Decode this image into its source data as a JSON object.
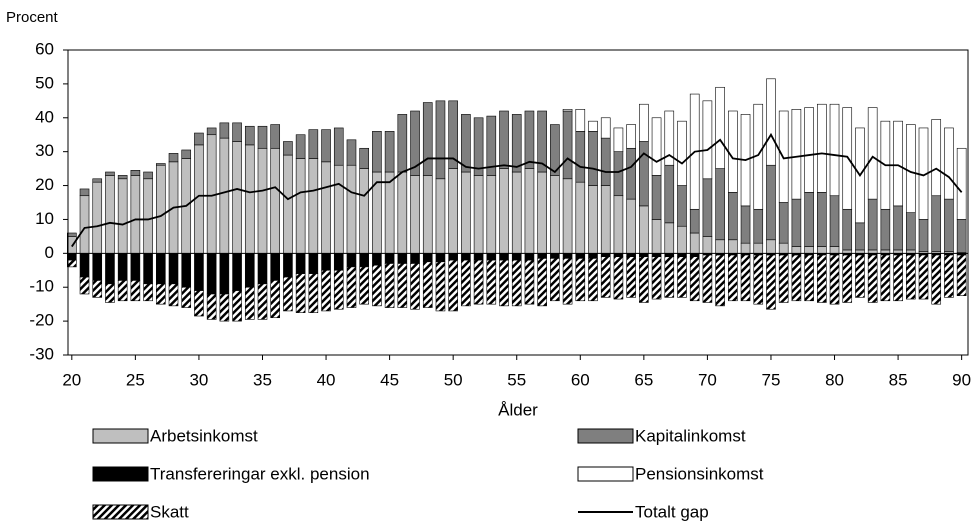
{
  "chart_data": {
    "type": "bar",
    "y_label": "Procent",
    "x_label": "Ålder",
    "x": [
      20,
      21,
      22,
      23,
      24,
      25,
      26,
      27,
      28,
      29,
      30,
      31,
      32,
      33,
      34,
      35,
      36,
      37,
      38,
      39,
      40,
      41,
      42,
      43,
      44,
      45,
      46,
      47,
      48,
      49,
      50,
      51,
      52,
      53,
      54,
      55,
      56,
      57,
      58,
      59,
      60,
      61,
      62,
      63,
      64,
      65,
      66,
      67,
      68,
      69,
      70,
      71,
      72,
      73,
      74,
      75,
      76,
      77,
      78,
      79,
      80,
      81,
      82,
      83,
      84,
      85,
      86,
      87,
      88,
      89,
      90
    ],
    "series": [
      {
        "name": "Arbetsinkomst",
        "color": "#bfbfbf",
        "values": [
          5,
          17,
          21,
          23,
          22,
          23,
          22,
          26,
          27,
          28,
          32,
          35,
          34,
          33,
          32,
          31,
          31,
          29,
          28,
          28,
          27,
          26,
          26,
          25,
          24,
          24,
          24,
          23,
          23,
          22,
          25,
          24,
          23,
          23,
          25,
          24,
          25,
          24,
          23,
          22,
          21,
          20,
          20,
          17,
          16,
          14,
          10,
          9,
          8,
          6,
          5,
          4,
          4,
          3,
          3,
          4,
          3,
          2,
          2,
          2,
          2,
          1,
          1,
          1,
          1,
          1,
          1,
          0.5,
          0.5,
          0.5,
          0.3
        ]
      },
      {
        "name": "Kapitalinkomst",
        "color": "#7f7f7f",
        "values": [
          1,
          2,
          1,
          1,
          1,
          1.5,
          2,
          0.5,
          2.5,
          2.5,
          3.5,
          2,
          4.5,
          5.5,
          5.5,
          6.5,
          7,
          4,
          7,
          8.5,
          9.5,
          11,
          7.5,
          6,
          12,
          12,
          17,
          19,
          21.5,
          23,
          20,
          17,
          17,
          17.5,
          17,
          17,
          17,
          18,
          15,
          20,
          15,
          16,
          14,
          13,
          15,
          19,
          13,
          17,
          12,
          7,
          17,
          21,
          14,
          11,
          10,
          22,
          12,
          14,
          16,
          16,
          15,
          12,
          8,
          15,
          12,
          13,
          11,
          9.5,
          16.5,
          15.5,
          9.7
        ]
      },
      {
        "name": "Transfereringar exkl. pension",
        "color": "#000000",
        "values": [
          -2,
          -7,
          -8,
          -9,
          -8,
          -8,
          -9,
          -9,
          -9,
          -10,
          -11,
          -12,
          -12,
          -11,
          -10,
          -9,
          -8,
          -7,
          -6,
          -6,
          -5,
          -5,
          -4,
          -4,
          -3.5,
          -3,
          -3,
          -3,
          -2.5,
          -2.5,
          -2,
          -2,
          -2,
          -2,
          -2,
          -2,
          -2,
          -1.5,
          -1.5,
          -1.5,
          -1.5,
          -1.5,
          -1,
          -1,
          -1,
          -1,
          -1,
          -1,
          -1,
          -1,
          -0.5,
          -0.5,
          -0.5,
          -0.5,
          -0.5,
          -0.5,
          -0.5,
          -0.5,
          -0.5,
          -0.5,
          -0.5,
          -0.5,
          -0.5,
          -0.5,
          -0.5,
          -0.5,
          -0.5,
          -0.5,
          -0.5,
          -0.5,
          -0.5
        ]
      },
      {
        "name": "Pensionsinkomst",
        "color": "#ffffff",
        "values": [
          0,
          0,
          0,
          0,
          0,
          0,
          0,
          0,
          0,
          0,
          0,
          0,
          0,
          0,
          0,
          0,
          0,
          0,
          0,
          0,
          0,
          0,
          0,
          0,
          0,
          0,
          0,
          0,
          0,
          0,
          0,
          0,
          0,
          0,
          0,
          0,
          0,
          0,
          0,
          0.5,
          6.5,
          3,
          6,
          7,
          7,
          11,
          17,
          16,
          19,
          34,
          23,
          24,
          24,
          27,
          31,
          25.5,
          27,
          26.5,
          25,
          26,
          27,
          30,
          28,
          27,
          26,
          25,
          26,
          27,
          22.5,
          21,
          21
        ]
      },
      {
        "name": "Skatt",
        "color": "#000000",
        "hatch": true,
        "values": [
          -2,
          -5,
          -5,
          -5.5,
          -6,
          -6,
          -5,
          -6,
          -6.5,
          -6,
          -7.5,
          -7.5,
          -8,
          -9,
          -9.5,
          -10.5,
          -11,
          -10,
          -11.5,
          -11.5,
          -12,
          -11.5,
          -12,
          -11,
          -12,
          -13,
          -13,
          -13.5,
          -13.5,
          -14.5,
          -15,
          -13.5,
          -13,
          -13,
          -13.5,
          -13.5,
          -13,
          -14,
          -12.5,
          -13.5,
          -12.5,
          -12.5,
          -12,
          -12.5,
          -12,
          -13.5,
          -12.5,
          -12,
          -12,
          -13,
          -14,
          -15,
          -13.5,
          -13.5,
          -14.5,
          -16,
          -14,
          -13.5,
          -13.5,
          -14,
          -14.5,
          -14,
          -12.5,
          -14,
          -13.5,
          -13.5,
          -13,
          -13,
          -14.5,
          -12.5,
          -12
        ]
      },
      {
        "name": "Totalt gap",
        "type": "line",
        "color": "#000000",
        "values": [
          2,
          7.5,
          8,
          9,
          8.5,
          10,
          10,
          11,
          13.5,
          14,
          17,
          17,
          18,
          19,
          18,
          18.5,
          19.5,
          16,
          18,
          18.5,
          19.5,
          20.5,
          18,
          17,
          21,
          21,
          24,
          25.5,
          28,
          28,
          28,
          25.5,
          25,
          25.5,
          26,
          25.5,
          27,
          26.5,
          24,
          28,
          25.5,
          25,
          24,
          24,
          25.5,
          29.5,
          27,
          29,
          26.5,
          30,
          30.5,
          33.5,
          28,
          27.5,
          29,
          35,
          28,
          28.5,
          29,
          29.5,
          29,
          28.5,
          23,
          28.5,
          26,
          26,
          24,
          23,
          25,
          22.5,
          18
        ]
      }
    ],
    "xlim": [
      19.7,
      90.5
    ],
    "xticks": [
      20,
      25,
      30,
      35,
      40,
      45,
      50,
      55,
      60,
      65,
      70,
      75,
      80,
      85,
      90
    ],
    "ylim": [
      -30,
      60
    ],
    "yticks": [
      -30,
      -20,
      -10,
      0,
      10,
      20,
      30,
      40,
      50,
      60
    ]
  }
}
